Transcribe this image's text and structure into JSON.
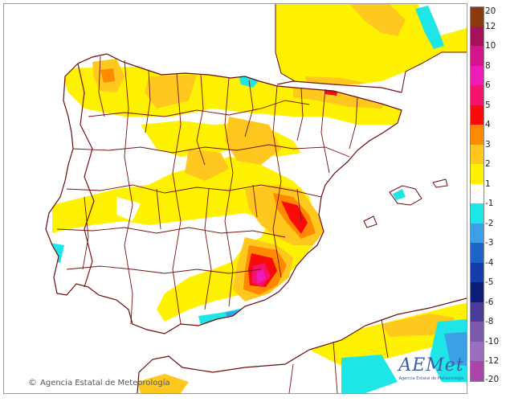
{
  "title": "",
  "credit": {
    "symbol": "©",
    "text": "Agencia Estatal de Meteorología"
  },
  "logo": {
    "wordmark": "AEMet",
    "subtitle": "Agencia Estatal de Meteorología"
  },
  "legend": {
    "orientation": "vertical",
    "placement": "right",
    "ticks": [
      "20",
      "12",
      "10",
      "8",
      "6",
      "5",
      "4",
      "3",
      "2",
      "1",
      "-1",
      "-2",
      "-3",
      "-4",
      "-5",
      "-6",
      "-8",
      "-10",
      "-12",
      "-20"
    ],
    "bins": [
      {
        "from": 12,
        "to": 20,
        "color": "#8b3a0f"
      },
      {
        "from": 10,
        "to": 12,
        "color": "#a4125a"
      },
      {
        "from": 8,
        "to": 10,
        "color": "#d4148c"
      },
      {
        "from": 6,
        "to": 8,
        "color": "#ee1aba"
      },
      {
        "from": 5,
        "to": 6,
        "color": "#f4136e"
      },
      {
        "from": 4,
        "to": 5,
        "color": "#f80b0b"
      },
      {
        "from": 3,
        "to": 4,
        "color": "#ff8a00"
      },
      {
        "from": 2,
        "to": 3,
        "color": "#ffc81e"
      },
      {
        "from": 1,
        "to": 2,
        "color": "#fff200"
      },
      {
        "from": -1,
        "to": 1,
        "color": "#ffffff"
      },
      {
        "from": -2,
        "to": -1,
        "color": "#1ee6e6"
      },
      {
        "from": -3,
        "to": -2,
        "color": "#3ca0e6"
      },
      {
        "from": -4,
        "to": -3,
        "color": "#1e64c8"
      },
      {
        "from": -5,
        "to": -4,
        "color": "#143caa"
      },
      {
        "from": -6,
        "to": -5,
        "color": "#0c1e78"
      },
      {
        "from": -8,
        "to": -6,
        "color": "#4a3c96"
      },
      {
        "from": -10,
        "to": -8,
        "color": "#7a5aaa"
      },
      {
        "from": -12,
        "to": -10,
        "color": "#9a6ec0"
      },
      {
        "from": -20,
        "to": -12,
        "color": "#aa46aa"
      }
    ]
  },
  "colors": {
    "land": "#ffffff",
    "anomaly_1_2": "#fff200",
    "anomaly_2_3": "#ffc81e",
    "anomaly_3_4": "#ff8a00",
    "anomaly_4_5": "#f80b0b",
    "anomaly_5_6": "#f4136e",
    "anomaly_6_8": "#ee1aba",
    "anomaly_neg1_neg2": "#1ee6e6",
    "anomaly_neg2_neg3": "#3ca0e6",
    "borders": "#7a1010",
    "coast": "#6a0a0a"
  }
}
